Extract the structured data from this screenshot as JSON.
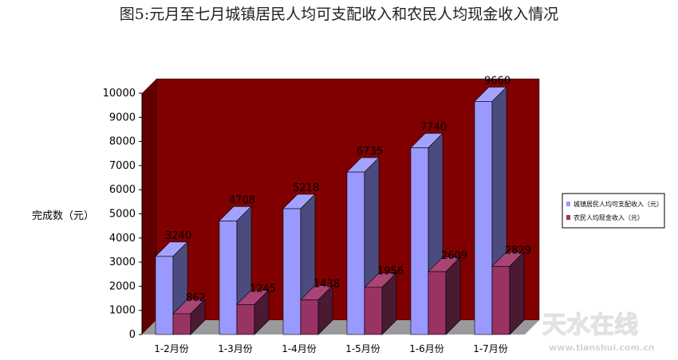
{
  "chart_data": {
    "type": "bar",
    "title": "图5:元月至七月城镇居民人均可支配收入和农民人均现金收入情况",
    "ylabel": "完成数（元）",
    "xlabel": "",
    "categories": [
      "1-2月份",
      "1-3月份",
      "1-4月份",
      "1-5月份",
      "1-6月份",
      "1-7月份"
    ],
    "series": [
      {
        "name": "城镇居民人均可支配收入（元）",
        "values": [
          3240,
          4708,
          5218,
          6735,
          7740,
          9660
        ],
        "labels": [
          "3240",
          "4708",
          "5218",
          "6735",
          "7740",
          "9660"
        ]
      },
      {
        "name": "农民人均现金收入（元）",
        "values": [
          862,
          1245,
          1438,
          1956,
          2609,
          2829
        ],
        "labels": [
          "862",
          "1245",
          "1438",
          "1956",
          "2609",
          "2829"
        ]
      }
    ],
    "ylim": [
      0,
      10000
    ],
    "yticks": [
      0,
      1000,
      2000,
      3000,
      4000,
      5000,
      6000,
      7000,
      8000,
      9000,
      10000
    ],
    "legend": "right",
    "grid": false,
    "colors": {
      "wall": "#800000",
      "s1_front": "#9999ff",
      "s1_top": "#a3a3ff",
      "s1_side": "#4b4b7e",
      "s2_front": "#993366",
      "s2_top": "#aa4477",
      "s2_side": "#4a1a32"
    }
  },
  "watermark": {
    "brand": "天水在线",
    "url": "www.tianshui.com.cn"
  }
}
